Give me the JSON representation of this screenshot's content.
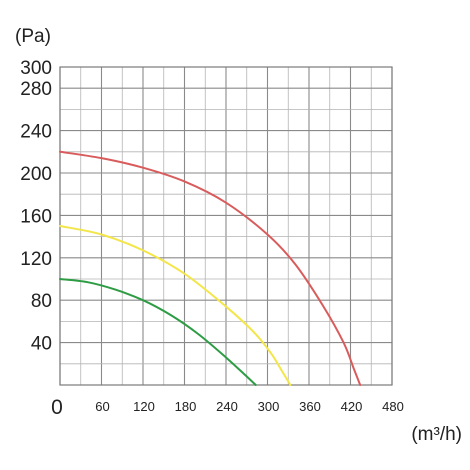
{
  "chart_data": {
    "type": "line",
    "ylabel": "(Pa)",
    "xlabel": "(m³/h)",
    "xlim": [
      0,
      480
    ],
    "ylim": [
      0,
      300
    ],
    "grid": true,
    "x_minor_step": 30,
    "y_minor_step": 20,
    "x_ticks": [
      {
        "value": 0,
        "label": "0"
      },
      {
        "value": 60,
        "label": "60"
      },
      {
        "value": 120,
        "label": "120"
      },
      {
        "value": 180,
        "label": "180"
      },
      {
        "value": 240,
        "label": "240"
      },
      {
        "value": 300,
        "label": "300"
      },
      {
        "value": 360,
        "label": "360"
      },
      {
        "value": 420,
        "label": "420"
      },
      {
        "value": 480,
        "label": "480"
      }
    ],
    "y_ticks": [
      {
        "value": 40,
        "label": "40"
      },
      {
        "value": 80,
        "label": "80"
      },
      {
        "value": 120,
        "label": "120"
      },
      {
        "value": 160,
        "label": "160"
      },
      {
        "value": 200,
        "label": "200"
      },
      {
        "value": 240,
        "label": "240"
      },
      {
        "value": 280,
        "label": "280"
      },
      {
        "value": 300,
        "label": "300"
      }
    ],
    "series": [
      {
        "color": "#d95c5c",
        "x": [
          0,
          60,
          120,
          180,
          240,
          300,
          340,
          380,
          410,
          425,
          434
        ],
        "y": [
          220,
          214,
          205,
          192,
          172,
          142,
          114,
          75,
          40,
          15,
          0
        ]
      },
      {
        "color": "#f3e64a",
        "x": [
          0,
          60,
          120,
          180,
          240,
          280,
          305,
          322,
          333
        ],
        "y": [
          150,
          142,
          127,
          105,
          74,
          50,
          30,
          12,
          0
        ]
      },
      {
        "color": "#2e9c44",
        "x": [
          0,
          40,
          80,
          120,
          160,
          200,
          240,
          270,
          283
        ],
        "y": [
          100,
          97,
          90,
          80,
          66,
          48,
          26,
          8,
          0
        ]
      }
    ]
  }
}
